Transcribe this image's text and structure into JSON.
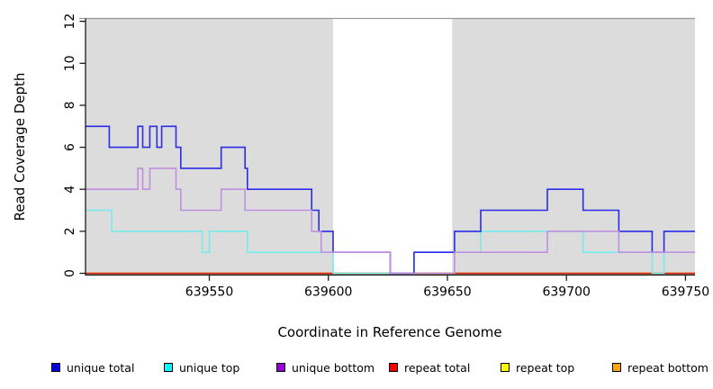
{
  "chart_data": {
    "type": "line",
    "step": true,
    "title": "",
    "xlabel": "Coordinate in Reference Genome",
    "ylabel": "Read Coverage Depth",
    "xlim": [
      639498,
      639754
    ],
    "ylim": [
      0,
      12
    ],
    "x_ticks": [
      "639550",
      "639600",
      "639650",
      "639700",
      "639750"
    ],
    "x_tick_values": [
      639550,
      639600,
      639650,
      639700,
      639750
    ],
    "y_ticks": [
      "0",
      "2",
      "4",
      "6",
      "8",
      "10",
      "12"
    ],
    "y_tick_values": [
      0,
      2,
      4,
      6,
      8,
      10,
      12
    ],
    "grid": false,
    "plot_background": "#dcdcdc",
    "highlight_region": {
      "from": 639602,
      "to": 639652,
      "color": "#ffffff"
    },
    "axis_color": "#1a1a1a",
    "top_border_color": "#999999",
    "legend_position": "bottom",
    "series": [
      {
        "name": "unique total",
        "line_color": "#2b2be8",
        "legend_color": "#0000dd",
        "z": 5,
        "points": [
          [
            639498,
            7
          ],
          [
            639508,
            6
          ],
          [
            639520,
            7
          ],
          [
            639522,
            6
          ],
          [
            639525,
            7
          ],
          [
            639528,
            6
          ],
          [
            639530,
            7
          ],
          [
            639536,
            6
          ],
          [
            639538,
            5
          ],
          [
            639555,
            6
          ],
          [
            639565,
            5
          ],
          [
            639566,
            4
          ],
          [
            639593,
            3
          ],
          [
            639596,
            2
          ],
          [
            639602,
            1
          ],
          [
            639626,
            0
          ],
          [
            639636,
            1
          ],
          [
            639653,
            2
          ],
          [
            639664,
            3
          ],
          [
            639692,
            4
          ],
          [
            639707,
            3
          ],
          [
            639722,
            2
          ],
          [
            639736,
            1
          ],
          [
            639741,
            2
          ]
        ]
      },
      {
        "name": "unique top",
        "line_color": "#74ecec",
        "legend_color": "#00ffff",
        "z": 4,
        "points": [
          [
            639498,
            3
          ],
          [
            639509,
            2
          ],
          [
            639547,
            1
          ],
          [
            639550,
            2
          ],
          [
            639566,
            1
          ],
          [
            639602,
            0
          ],
          [
            639636,
            1
          ],
          [
            639664,
            2
          ],
          [
            639707,
            1
          ],
          [
            639736,
            0
          ],
          [
            639741,
            1
          ]
        ]
      },
      {
        "name": "unique bottom",
        "line_color": "#c08fdf",
        "legend_color": "#9400d3",
        "z": 6,
        "points": [
          [
            639498,
            4
          ],
          [
            639520,
            5
          ],
          [
            639522,
            4
          ],
          [
            639525,
            5
          ],
          [
            639536,
            4
          ],
          [
            639538,
            3
          ],
          [
            639555,
            4
          ],
          [
            639565,
            3
          ],
          [
            639593,
            2
          ],
          [
            639597,
            1
          ],
          [
            639626,
            0
          ],
          [
            639653,
            1
          ],
          [
            639692,
            2
          ],
          [
            639722,
            1
          ]
        ]
      },
      {
        "name": "repeat total",
        "line_color": "#e02020",
        "legend_color": "#ff0000",
        "z": 3,
        "points": [
          [
            639498,
            0
          ]
        ]
      },
      {
        "name": "repeat top",
        "line_color": "#f0f000",
        "legend_color": "#ffff00",
        "z": 2,
        "points": [
          [
            639498,
            0
          ]
        ]
      },
      {
        "name": "repeat bottom",
        "line_color": "#ff9100",
        "legend_color": "#ffa500",
        "z": 1,
        "points": [
          [
            639498,
            0
          ]
        ]
      }
    ]
  }
}
